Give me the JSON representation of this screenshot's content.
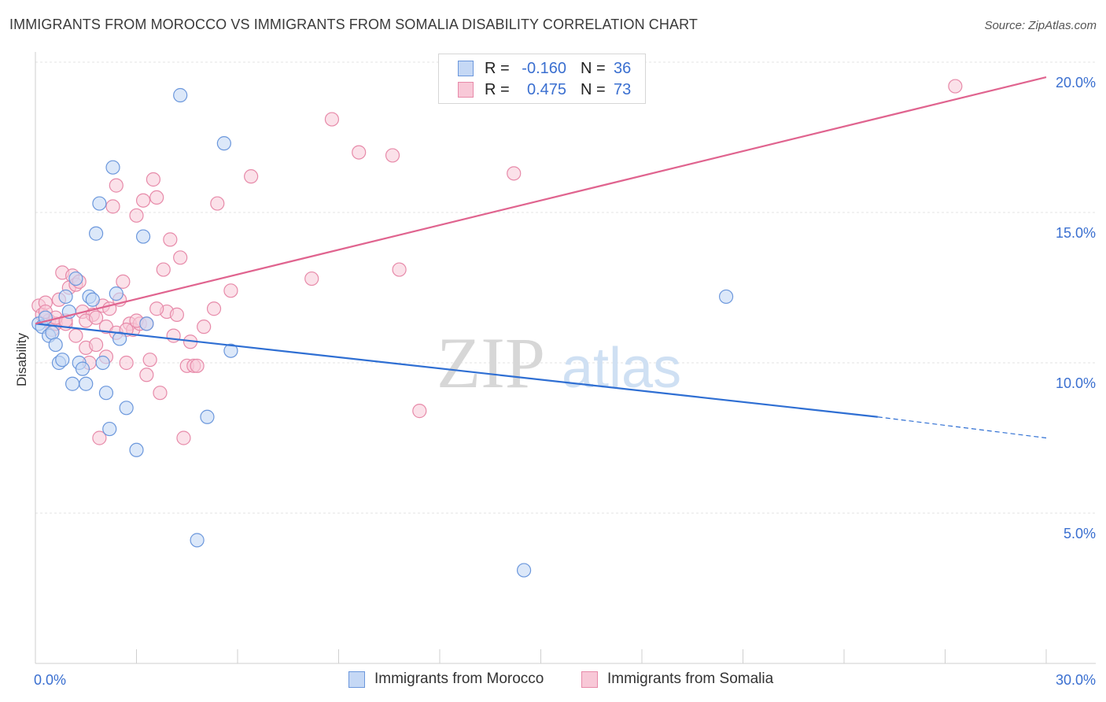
{
  "title": "IMMIGRANTS FROM MOROCCO VS IMMIGRANTS FROM SOMALIA DISABILITY CORRELATION CHART",
  "source": "Source: ZipAtlas.com",
  "watermark": {
    "zip": "ZIP",
    "atlas": "atlas"
  },
  "legend": {
    "r_label": "R =",
    "n_label": "N =",
    "rows": [
      {
        "r": "-0.160",
        "n": "36"
      },
      {
        "r": "0.475",
        "n": "73"
      }
    ]
  },
  "colors": {
    "morocco_fill": "#c5d8f5",
    "morocco_stroke": "#6b97dc",
    "morocco_line": "#2f6fd3",
    "somalia_fill": "#f8c8d7",
    "somalia_stroke": "#e78aa9",
    "somalia_line": "#e0648f",
    "axis_label": "#3a6fd0"
  },
  "chart_data": {
    "type": "scatter",
    "xlabel": "",
    "ylabel": "Disability",
    "xlim": [
      0,
      30
    ],
    "ylim": [
      0,
      20.5
    ],
    "x_tick_labels": [
      "0.0%",
      "30.0%"
    ],
    "y_ticks": [
      5,
      10,
      15,
      20
    ],
    "y_tick_labels": [
      "5.0%",
      "10.0%",
      "15.0%",
      "20.0%"
    ],
    "series": [
      {
        "name": "Immigrants from Morocco",
        "points": [
          [
            0.1,
            11.3
          ],
          [
            0.2,
            11.2
          ],
          [
            0.3,
            11.5
          ],
          [
            0.4,
            10.9
          ],
          [
            0.5,
            11.0
          ],
          [
            0.6,
            10.6
          ],
          [
            0.7,
            10.0
          ],
          [
            0.8,
            10.1
          ],
          [
            0.9,
            12.2
          ],
          [
            1.0,
            11.7
          ],
          [
            1.1,
            9.3
          ],
          [
            1.2,
            12.8
          ],
          [
            1.3,
            10.0
          ],
          [
            1.4,
            9.8
          ],
          [
            1.5,
            9.3
          ],
          [
            1.6,
            12.2
          ],
          [
            1.7,
            12.1
          ],
          [
            1.8,
            14.3
          ],
          [
            1.9,
            15.3
          ],
          [
            2.0,
            10.0
          ],
          [
            2.1,
            9.0
          ],
          [
            2.2,
            7.8
          ],
          [
            2.3,
            16.5
          ],
          [
            2.4,
            12.3
          ],
          [
            2.5,
            10.8
          ],
          [
            2.7,
            8.5
          ],
          [
            3.0,
            7.1
          ],
          [
            3.2,
            14.2
          ],
          [
            3.3,
            11.3
          ],
          [
            4.3,
            18.9
          ],
          [
            4.8,
            4.1
          ],
          [
            5.1,
            8.2
          ],
          [
            5.6,
            17.3
          ],
          [
            5.8,
            10.4
          ],
          [
            14.5,
            3.1
          ],
          [
            20.5,
            12.2
          ]
        ]
      },
      {
        "name": "Immigrants from Somalia",
        "points": [
          [
            0.1,
            11.9
          ],
          [
            0.2,
            11.6
          ],
          [
            0.3,
            12.0
          ],
          [
            0.4,
            11.4
          ],
          [
            0.5,
            11.1
          ],
          [
            0.6,
            11.3
          ],
          [
            0.7,
            12.1
          ],
          [
            0.8,
            13.0
          ],
          [
            0.9,
            11.3
          ],
          [
            1.0,
            12.5
          ],
          [
            1.1,
            12.9
          ],
          [
            1.2,
            12.6
          ],
          [
            1.3,
            12.7
          ],
          [
            1.4,
            11.7
          ],
          [
            1.5,
            10.5
          ],
          [
            1.6,
            10.0
          ],
          [
            1.7,
            11.6
          ],
          [
            1.8,
            10.6
          ],
          [
            1.9,
            7.5
          ],
          [
            2.0,
            11.9
          ],
          [
            2.1,
            11.2
          ],
          [
            2.2,
            11.8
          ],
          [
            2.3,
            15.2
          ],
          [
            2.4,
            15.9
          ],
          [
            2.5,
            12.1
          ],
          [
            2.6,
            12.7
          ],
          [
            2.7,
            10.0
          ],
          [
            2.8,
            11.3
          ],
          [
            2.9,
            11.1
          ],
          [
            3.0,
            14.9
          ],
          [
            3.1,
            11.3
          ],
          [
            3.2,
            15.4
          ],
          [
            3.3,
            9.6
          ],
          [
            3.4,
            10.1
          ],
          [
            3.5,
            16.1
          ],
          [
            3.6,
            15.5
          ],
          [
            3.7,
            9.0
          ],
          [
            3.8,
            13.1
          ],
          [
            3.9,
            11.7
          ],
          [
            4.0,
            14.1
          ],
          [
            4.1,
            10.9
          ],
          [
            4.2,
            11.6
          ],
          [
            4.3,
            13.5
          ],
          [
            4.4,
            7.5
          ],
          [
            4.5,
            9.9
          ],
          [
            4.6,
            10.7
          ],
          [
            4.7,
            9.9
          ],
          [
            4.8,
            9.9
          ],
          [
            5.0,
            11.2
          ],
          [
            5.3,
            11.8
          ],
          [
            5.4,
            15.3
          ],
          [
            5.8,
            12.4
          ],
          [
            6.4,
            16.2
          ],
          [
            8.2,
            12.8
          ],
          [
            8.8,
            18.1
          ],
          [
            9.6,
            17.0
          ],
          [
            10.6,
            16.9
          ],
          [
            10.8,
            13.1
          ],
          [
            11.4,
            8.4
          ],
          [
            14.2,
            16.3
          ],
          [
            27.3,
            19.2
          ],
          [
            0.3,
            11.7
          ],
          [
            0.6,
            11.5
          ],
          [
            0.9,
            11.4
          ],
          [
            1.2,
            10.9
          ],
          [
            1.5,
            11.4
          ],
          [
            1.8,
            11.5
          ],
          [
            2.1,
            10.2
          ],
          [
            2.4,
            11.0
          ],
          [
            2.7,
            11.1
          ],
          [
            3.0,
            11.4
          ],
          [
            3.3,
            11.3
          ],
          [
            3.6,
            11.8
          ]
        ]
      }
    ],
    "trend_lines": [
      {
        "series": "Immigrants from Morocco",
        "x_start": 0,
        "y_start": 11.3,
        "x_solid_end": 25.0,
        "y_solid_end": 8.2,
        "x_end": 30,
        "y_end": 7.5
      },
      {
        "series": "Immigrants from Somalia",
        "x_start": 0,
        "y_start": 11.3,
        "x_end": 30,
        "y_end": 19.5
      }
    ]
  }
}
